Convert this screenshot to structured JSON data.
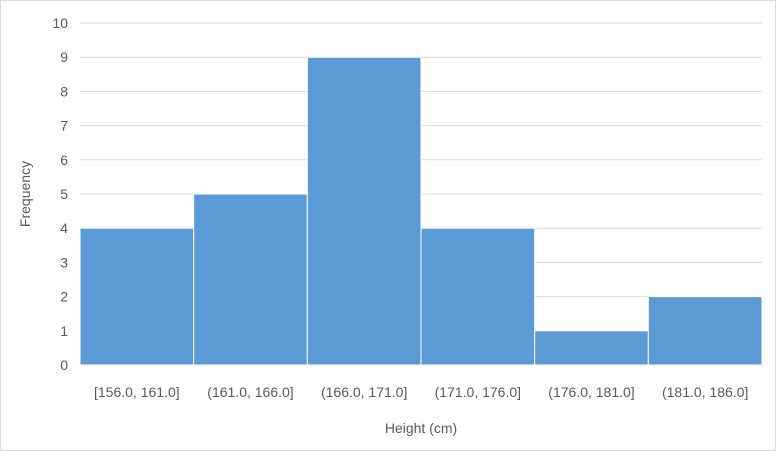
{
  "chart_data": {
    "type": "bar",
    "categories": [
      "[156.0, 161.0]",
      "(161.0, 166.0]",
      "(166.0, 171.0]",
      "(171.0, 176.0]",
      "(176.0, 181.0]",
      "(181.0, 186.0]"
    ],
    "values": [
      4,
      5,
      9,
      4,
      1,
      2
    ],
    "title": "",
    "xlabel": "Height (cm)",
    "ylabel": "Frequency",
    "ylim": [
      0,
      10
    ],
    "yticks": [
      "0",
      "1",
      "2",
      "3",
      "4",
      "5",
      "6",
      "7",
      "8",
      "9",
      "10"
    ],
    "grid": true,
    "legend": "none",
    "colors": {
      "bar": "#5b9bd5",
      "bar_edge": "#ffffff",
      "grid": "#d9d9d9",
      "text": "#595959"
    }
  }
}
